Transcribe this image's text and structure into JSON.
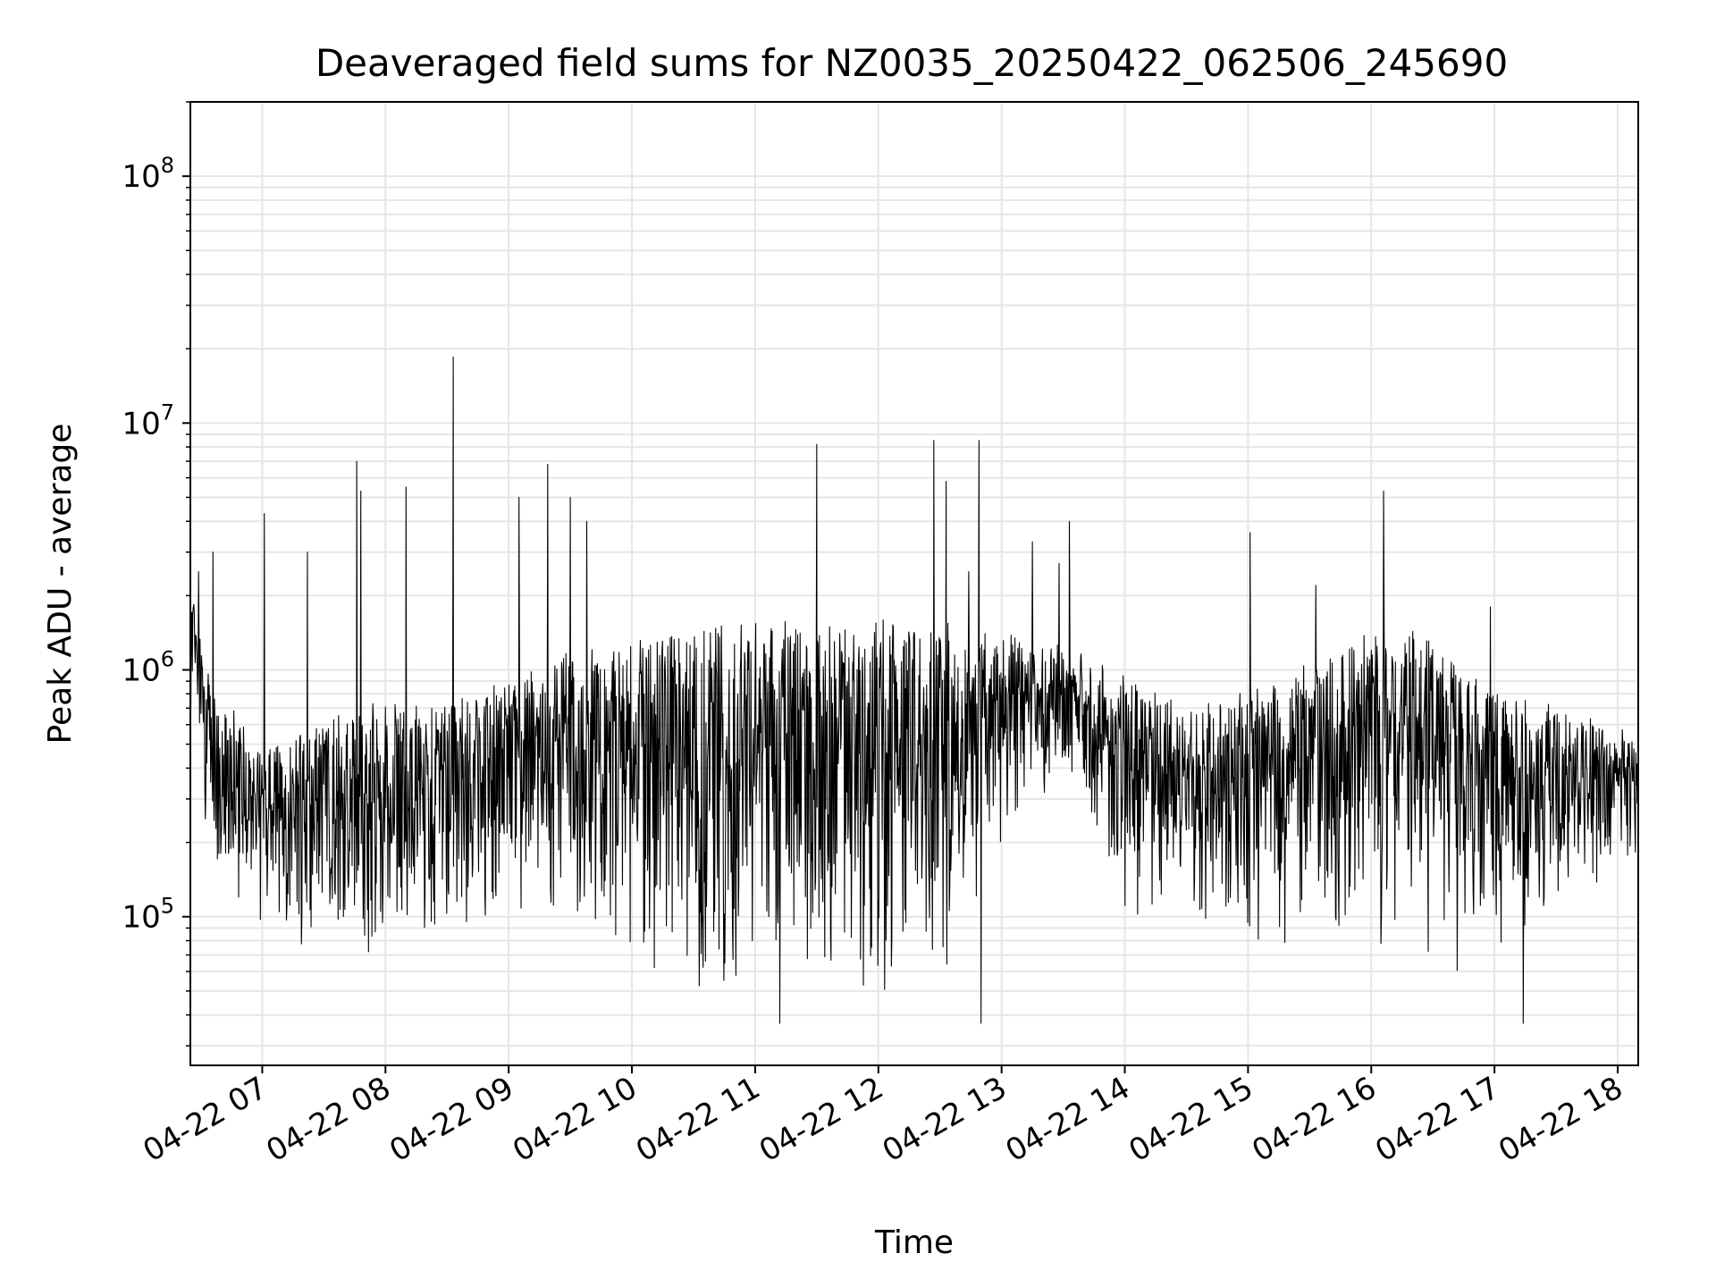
{
  "chart_data": {
    "type": "line",
    "title": "Deaveraged field sums for NZ0035_20250422_062506_245690",
    "xlabel": "Time",
    "ylabel": "Peak ADU - average",
    "yscale": "log",
    "xlim": [
      "2025-04-22 06:25",
      "2025-04-22 18:10"
    ],
    "ylim": [
      25000,
      200000000
    ],
    "grid": true,
    "line_color": "#000000",
    "grid_color": "#e6e6e6",
    "x_ticks": [
      "04-22 07",
      "04-22 08",
      "04-22 09",
      "04-22 10",
      "04-22 11",
      "04-22 12",
      "04-22 13",
      "04-22 14",
      "04-22 15",
      "04-22 16",
      "04-22 17",
      "04-22 18"
    ],
    "y_ticks": [
      {
        "base": "10",
        "exp": "5",
        "value": 100000
      },
      {
        "base": "10",
        "exp": "6",
        "value": 1000000
      },
      {
        "base": "10",
        "exp": "7",
        "value": 10000000
      },
      {
        "base": "10",
        "exp": "8",
        "value": 100000000
      }
    ],
    "series_profile": {
      "description_hours": [
        6.42,
        6.6,
        7.0,
        7.5,
        8.0,
        8.5,
        9.0,
        9.5,
        10.0,
        10.5,
        11.0,
        11.5,
        12.0,
        12.5,
        13.0,
        13.5,
        14.0,
        14.5,
        15.0,
        15.5,
        16.0,
        16.5,
        17.0,
        17.5,
        18.17
      ],
      "upper": [
        2000000,
        800000,
        500000,
        600000,
        700000,
        700000,
        900000,
        1100000,
        1400000,
        1500000,
        1500000,
        1500000,
        1500000,
        1500000,
        1300000,
        1200000,
        900000,
        700000,
        800000,
        1000000,
        1500000,
        1300000,
        800000,
        700000,
        500000
      ],
      "lower": [
        500000,
        150000,
        80000,
        70000,
        70000,
        70000,
        100000,
        80000,
        60000,
        50000,
        45000,
        45000,
        45000,
        45000,
        200000,
        300000,
        100000,
        80000,
        70000,
        70000,
        80000,
        60000,
        60000,
        100000,
        150000
      ]
    },
    "spikes": [
      {
        "x": "2025-04-22 06:29",
        "y": 2500000
      },
      {
        "x": "2025-04-22 06:36",
        "y": 3000000
      },
      {
        "x": "2025-04-22 07:01",
        "y": 4300000
      },
      {
        "x": "2025-04-22 07:22",
        "y": 3000000
      },
      {
        "x": "2025-04-22 07:46",
        "y": 7000000
      },
      {
        "x": "2025-04-22 07:48",
        "y": 5300000
      },
      {
        "x": "2025-04-22 08:10",
        "y": 5500000
      },
      {
        "x": "2025-04-22 08:33",
        "y": 10800000
      },
      {
        "x": "2025-04-22 08:33",
        "y": 18500000
      },
      {
        "x": "2025-04-22 09:05",
        "y": 5000000
      },
      {
        "x": "2025-04-22 09:19",
        "y": 6800000
      },
      {
        "x": "2025-04-22 09:30",
        "y": 5000000
      },
      {
        "x": "2025-04-22 09:38",
        "y": 4000000
      },
      {
        "x": "2025-04-22 11:30",
        "y": 8200000
      },
      {
        "x": "2025-04-22 12:27",
        "y": 8500000
      },
      {
        "x": "2025-04-22 12:33",
        "y": 5800000
      },
      {
        "x": "2025-04-22 12:44",
        "y": 2500000
      },
      {
        "x": "2025-04-22 12:49",
        "y": 8500000
      },
      {
        "x": "2025-04-22 13:15",
        "y": 3300000
      },
      {
        "x": "2025-04-22 13:28",
        "y": 2700000
      },
      {
        "x": "2025-04-22 13:33",
        "y": 4000000
      },
      {
        "x": "2025-04-22 15:01",
        "y": 3600000
      },
      {
        "x": "2025-04-22 15:33",
        "y": 2200000
      },
      {
        "x": "2025-04-22 16:06",
        "y": 5300000
      },
      {
        "x": "2025-04-22 16:58",
        "y": 1800000
      }
    ],
    "dips": [
      {
        "x": "2025-04-22 11:12",
        "y": 37000
      },
      {
        "x": "2025-04-22 12:50",
        "y": 37000
      },
      {
        "x": "2025-04-22 17:14",
        "y": 37000
      }
    ]
  }
}
